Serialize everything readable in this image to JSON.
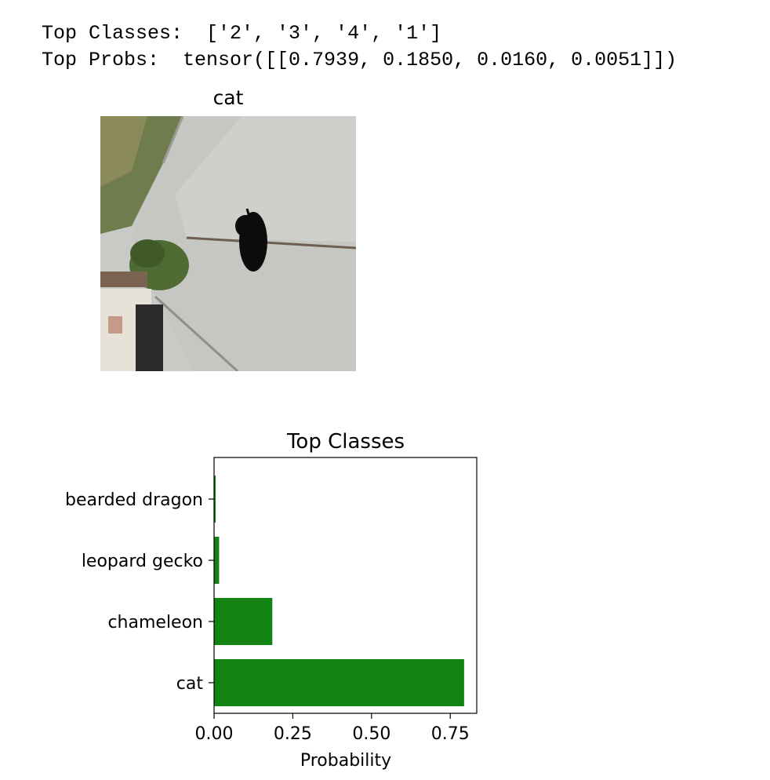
{
  "console": {
    "line1": "Top Classes:  ['2', '3', '4', '1']",
    "line2": "Top Probs:  tensor([[0.7939, 0.1850, 0.0160, 0.0051]])"
  },
  "image_panel": {
    "title": "cat"
  },
  "colors": {
    "bar": "#138313"
  },
  "chart_data": {
    "type": "bar",
    "orientation": "horizontal",
    "title": "Top Classes",
    "xlabel": "Probability",
    "ylabel": "",
    "categories": [
      "cat",
      "chameleon",
      "leopard gecko",
      "bearded dragon"
    ],
    "values": [
      0.7939,
      0.185,
      0.016,
      0.0051
    ],
    "xlim": [
      0,
      0.834
    ],
    "xticks": [
      "0.00",
      "0.25",
      "0.50",
      "0.75"
    ],
    "grid": false,
    "legend": "none"
  }
}
